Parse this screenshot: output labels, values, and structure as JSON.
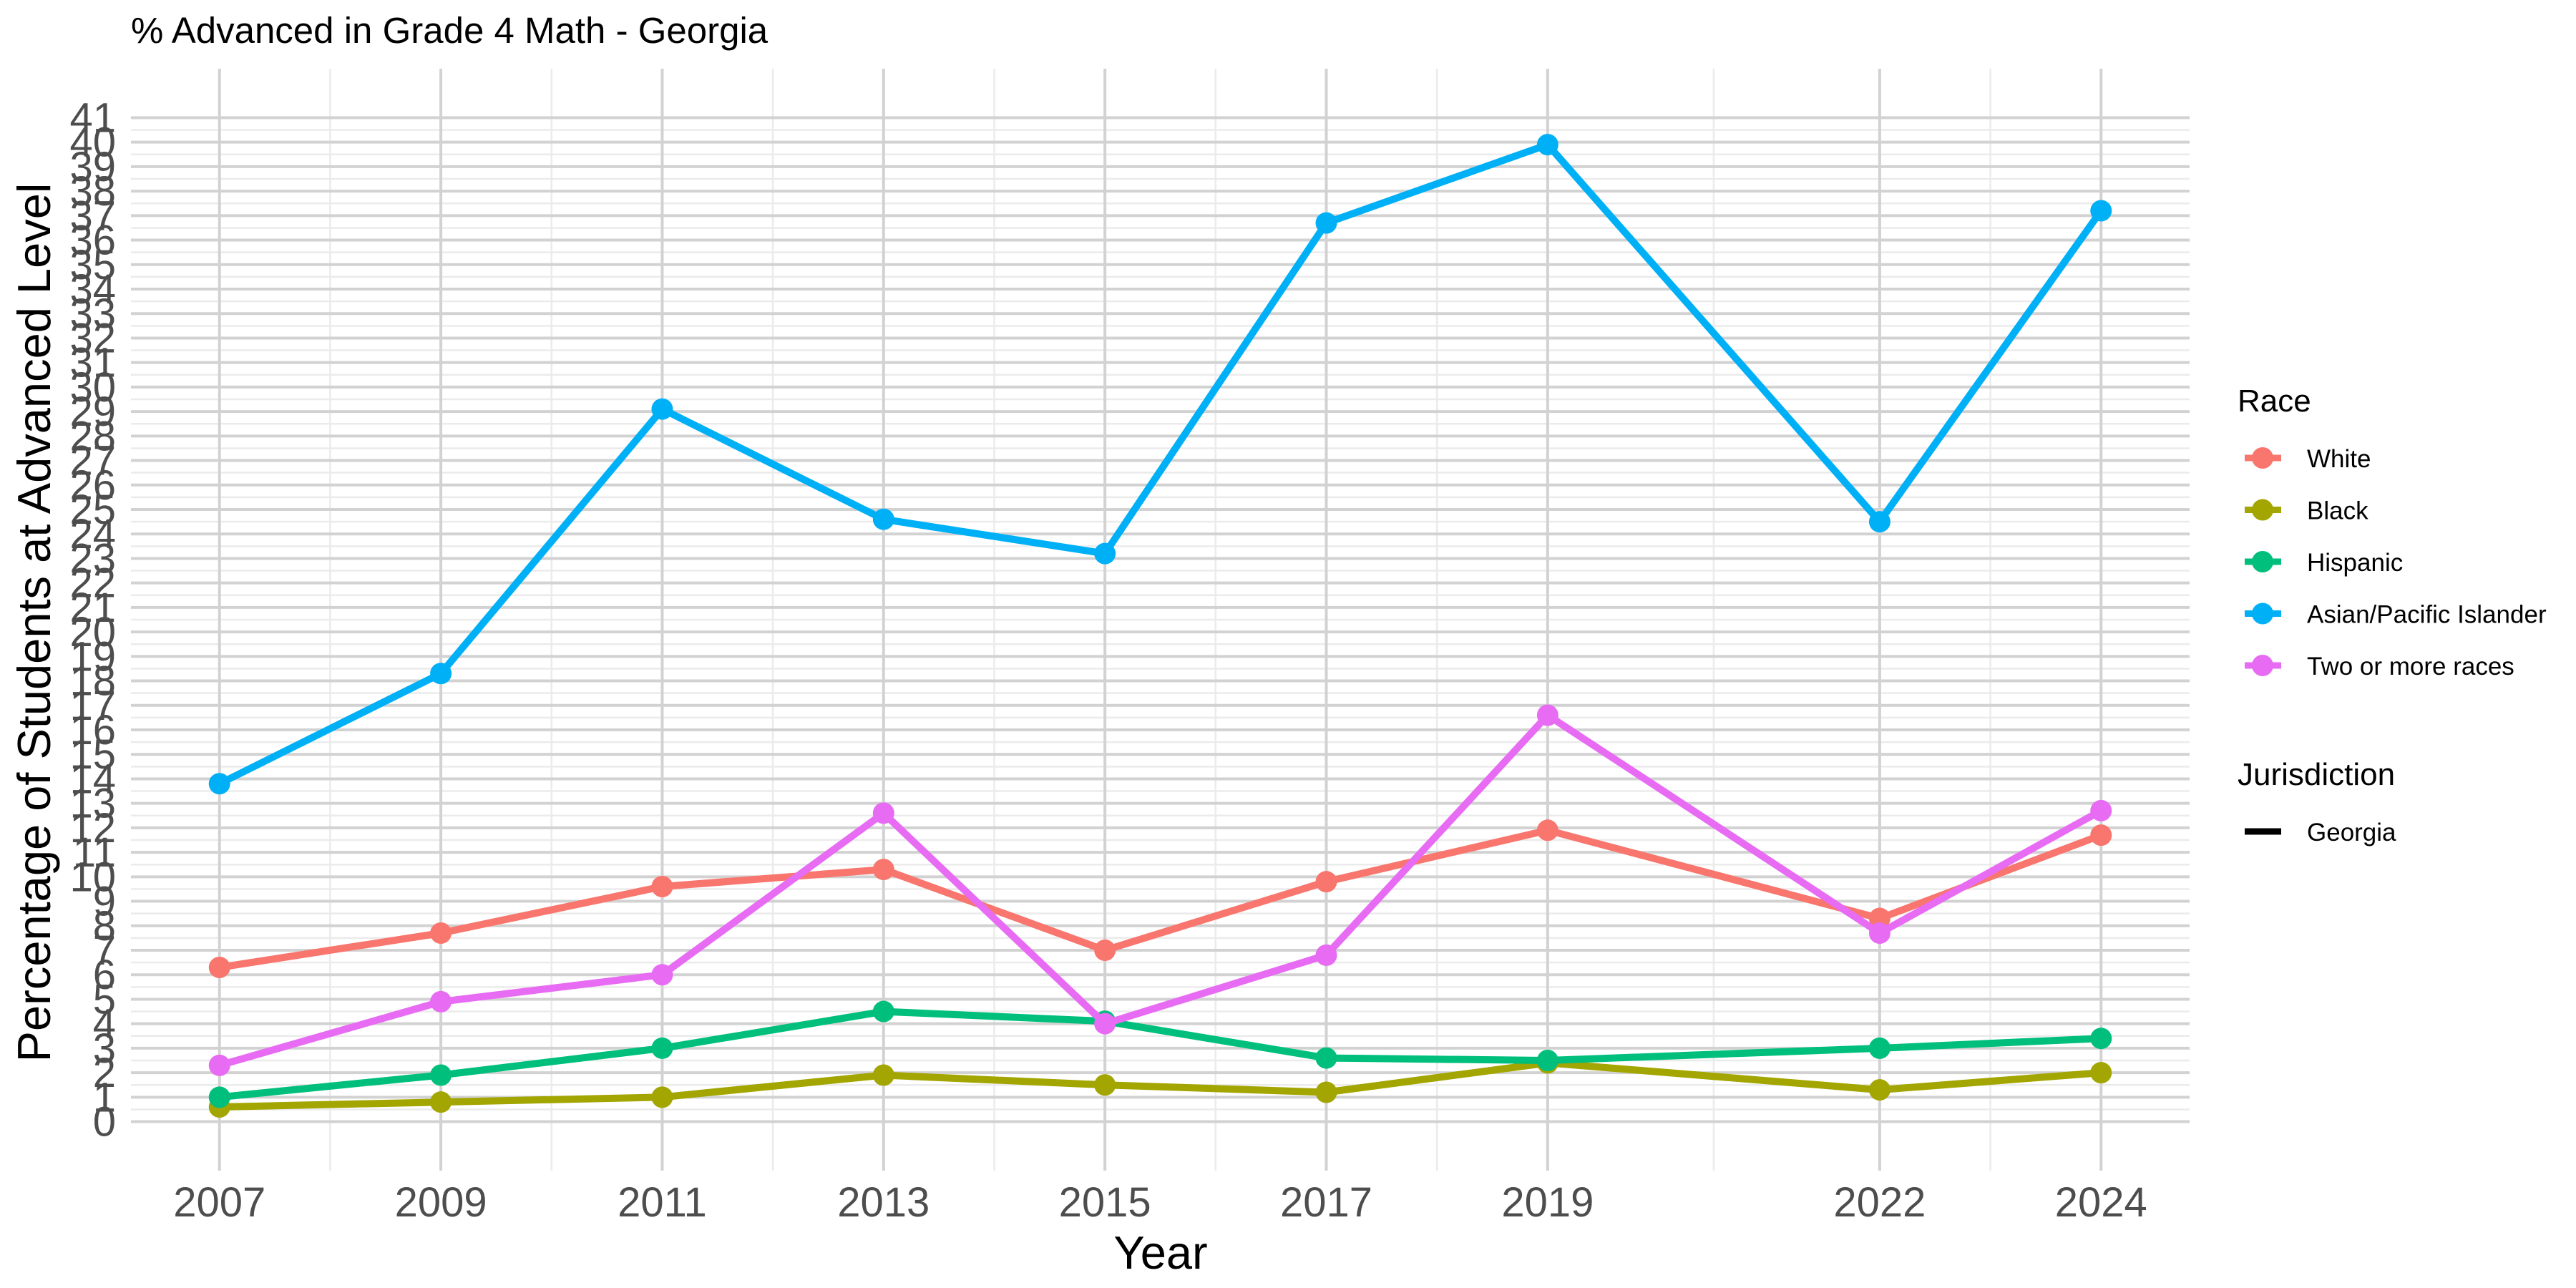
{
  "chart_data": {
    "type": "line",
    "title": "% Advanced in Grade 4 Math - Georgia",
    "xlabel": "Year",
    "ylabel": "Percentage of Students at Advanced Level",
    "x": [
      2007,
      2009,
      2011,
      2013,
      2015,
      2017,
      2019,
      2022,
      2024
    ],
    "xlim": [
      2006.2,
      2024.8
    ],
    "ylim": [
      -2,
      43
    ],
    "yticks": [
      0,
      1,
      2,
      3,
      4,
      5,
      6,
      7,
      8,
      9,
      10,
      11,
      12,
      13,
      14,
      15,
      16,
      17,
      18,
      19,
      20,
      21,
      22,
      23,
      24,
      25,
      26,
      27,
      28,
      29,
      30,
      31,
      32,
      33,
      34,
      35,
      36,
      37,
      38,
      39,
      40,
      41
    ],
    "grid": true,
    "legend_position": "right",
    "legend_race_title": "Race",
    "legend_jurisdiction_title": "Jurisdiction",
    "jurisdiction_entries": [
      "Georgia"
    ],
    "series": [
      {
        "name": "White",
        "color": "#F8766D",
        "values": [
          6.3,
          7.7,
          9.6,
          10.3,
          7.0,
          9.8,
          11.9,
          8.3,
          11.7
        ]
      },
      {
        "name": "Black",
        "color": "#A3A500",
        "values": [
          0.6,
          0.8,
          1.0,
          1.9,
          1.5,
          1.2,
          2.4,
          1.3,
          2.0
        ]
      },
      {
        "name": "Hispanic",
        "color": "#00BF7D",
        "values": [
          1.0,
          1.9,
          3.0,
          4.5,
          4.1,
          2.6,
          2.5,
          3.0,
          3.4
        ]
      },
      {
        "name": "Asian/Pacific Islander",
        "color": "#00B0F6",
        "values": [
          13.8,
          18.3,
          29.1,
          24.6,
          23.2,
          36.7,
          39.9,
          24.5,
          37.2
        ]
      },
      {
        "name": "Two or more races",
        "color": "#E76BF3",
        "values": [
          2.3,
          4.9,
          6.0,
          12.6,
          4.0,
          6.8,
          16.6,
          7.7,
          12.7
        ]
      }
    ]
  }
}
